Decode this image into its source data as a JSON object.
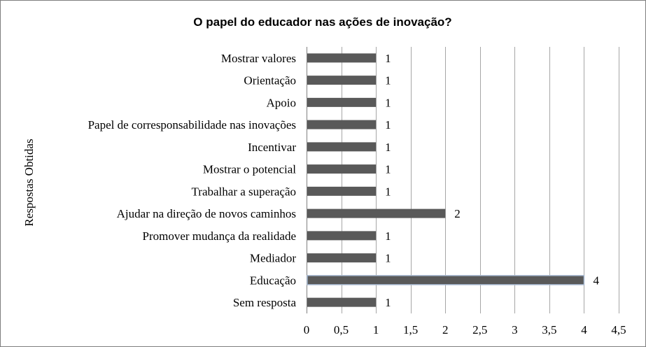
{
  "chart_data": {
    "type": "bar",
    "orientation": "horizontal",
    "title": "O papel do educador nas ações de inovação?",
    "ylabel": "Respostas Obtidas",
    "xlabel": "",
    "categories": [
      "Mostrar valores",
      "Orientação",
      "Apoio",
      "Papel de corresponsabilidade nas inovações",
      "Incentivar",
      "Mostrar o potencial",
      "Trabalhar a superação",
      "Ajudar na direção de novos caminhos",
      "Promover mudança da realidade",
      "Mediador",
      "Educação",
      "Sem resposta"
    ],
    "values": [
      1,
      1,
      1,
      1,
      1,
      1,
      1,
      2,
      1,
      1,
      4,
      1
    ],
    "value_labels": [
      "1",
      "1",
      "1",
      "1",
      "1",
      "1",
      "1",
      "2",
      "1",
      "1",
      "4",
      "1"
    ],
    "xlim": [
      0,
      4.5
    ],
    "x_ticks": [
      0,
      0.5,
      1,
      1.5,
      2,
      2.5,
      3,
      3.5,
      4,
      4.5
    ],
    "x_tick_labels": [
      "0",
      "0,5",
      "1",
      "1,5",
      "2",
      "2,5",
      "3",
      "3,5",
      "4",
      "4,5"
    ],
    "grid": "vertical",
    "legend": "none",
    "bar_color": "#595959",
    "highlight_outline_color": "#a6b8d0"
  }
}
